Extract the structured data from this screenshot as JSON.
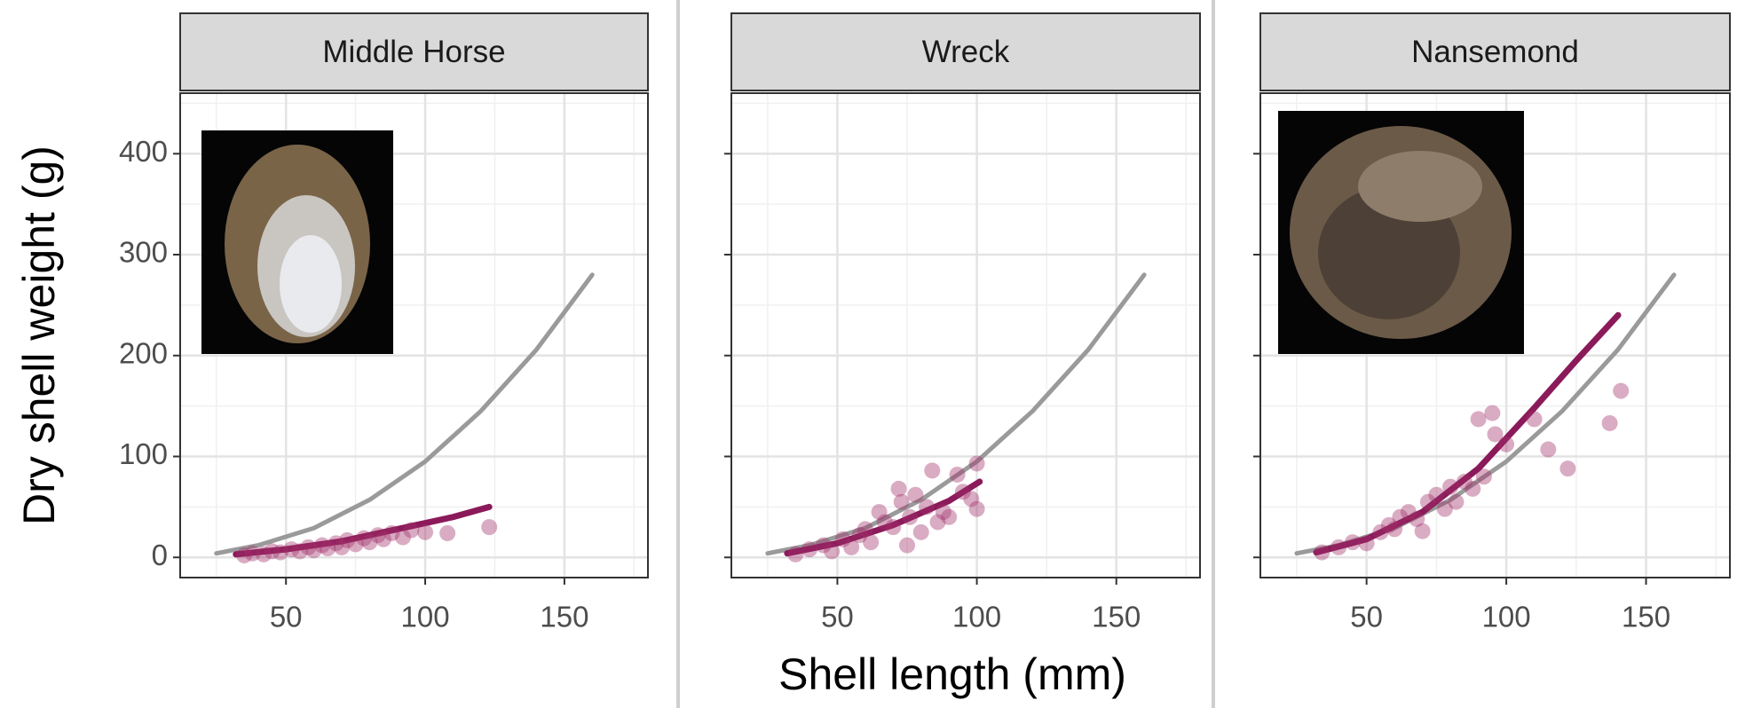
{
  "chart_data": [
    {
      "type": "scatter",
      "title": "Middle Horse",
      "y_label": "Dry shell weight (g)",
      "xlim": [
        12,
        180
      ],
      "ylim": [
        -20,
        460
      ],
      "xticks": [
        50,
        100,
        150
      ],
      "yticks": [
        0,
        100,
        200,
        300,
        400
      ],
      "y_tick_labels": true,
      "grid": true,
      "series": [
        {
          "style": "line",
          "color": "#9a9a9a",
          "x": [
            25,
            40,
            60,
            80,
            100,
            120,
            140,
            160
          ],
          "values": [
            4,
            12,
            29,
            57,
            95,
            145,
            206,
            280
          ]
        },
        {
          "style": "line",
          "color": "#8b1a5a",
          "x": [
            32,
            50,
            70,
            90,
            110,
            123
          ],
          "values": [
            3,
            8,
            16,
            28,
            40,
            50
          ]
        },
        {
          "style": "points",
          "color": "#a0306a",
          "x": [
            35,
            38,
            42,
            45,
            48,
            52,
            55,
            58,
            60,
            63,
            65,
            68,
            70,
            72,
            75,
            78,
            80,
            83,
            85,
            88,
            92,
            95,
            100,
            108,
            123
          ],
          "values": [
            2,
            4,
            3,
            6,
            5,
            8,
            6,
            10,
            7,
            12,
            9,
            14,
            10,
            17,
            13,
            19,
            15,
            22,
            18,
            24,
            20,
            27,
            25,
            24,
            30
          ]
        }
      ]
    },
    {
      "type": "scatter",
      "title": "Wreck",
      "x_label": "Shell length (mm)",
      "xlim": [
        12,
        180
      ],
      "ylim": [
        -20,
        460
      ],
      "xticks": [
        50,
        100,
        150
      ],
      "yticks": [
        0,
        100,
        200,
        300,
        400
      ],
      "y_tick_labels": false,
      "grid": true,
      "series": [
        {
          "style": "line",
          "color": "#9a9a9a",
          "x": [
            25,
            40,
            60,
            80,
            100,
            120,
            140,
            160
          ],
          "values": [
            4,
            12,
            29,
            57,
            95,
            145,
            206,
            280
          ]
        },
        {
          "style": "line",
          "color": "#8b1a5a",
          "x": [
            32,
            50,
            70,
            90,
            101
          ],
          "values": [
            4,
            14,
            32,
            56,
            75
          ]
        },
        {
          "style": "points",
          "color": "#a0306a",
          "x": [
            35,
            40,
            45,
            48,
            52,
            55,
            58,
            60,
            62,
            65,
            67,
            70,
            72,
            73,
            75,
            76,
            78,
            80,
            82,
            84,
            86,
            88,
            90,
            93,
            95,
            98,
            100,
            100
          ],
          "values": [
            3,
            8,
            12,
            6,
            18,
            10,
            22,
            28,
            15,
            45,
            35,
            30,
            68,
            55,
            12,
            40,
            62,
            25,
            50,
            86,
            35,
            45,
            40,
            82,
            65,
            58,
            93,
            48
          ]
        }
      ]
    },
    {
      "type": "scatter",
      "title": "Nansemond",
      "xlim": [
        12,
        180
      ],
      "ylim": [
        -20,
        460
      ],
      "xticks": [
        50,
        100,
        150
      ],
      "yticks": [
        0,
        100,
        200,
        300,
        400
      ],
      "y_tick_labels": false,
      "grid": true,
      "series": [
        {
          "style": "line",
          "color": "#9a9a9a",
          "x": [
            25,
            40,
            60,
            80,
            100,
            120,
            140,
            160
          ],
          "values": [
            4,
            12,
            29,
            57,
            95,
            145,
            206,
            280
          ]
        },
        {
          "style": "line",
          "color": "#8b1a5a",
          "x": [
            32,
            50,
            70,
            90,
            110,
            125,
            140
          ],
          "values": [
            5,
            18,
            45,
            88,
            148,
            195,
            240
          ]
        },
        {
          "style": "points",
          "color": "#a0306a",
          "x": [
            34,
            40,
            45,
            50,
            55,
            58,
            60,
            62,
            65,
            68,
            70,
            72,
            75,
            78,
            80,
            82,
            85,
            88,
            90,
            92,
            95,
            96,
            100,
            110,
            115,
            122,
            137,
            141
          ],
          "values": [
            5,
            10,
            15,
            14,
            25,
            32,
            28,
            40,
            45,
            38,
            26,
            55,
            62,
            48,
            70,
            55,
            75,
            68,
            137,
            80,
            143,
            122,
            112,
            137,
            107,
            88,
            133,
            165
          ]
        }
      ]
    }
  ]
}
